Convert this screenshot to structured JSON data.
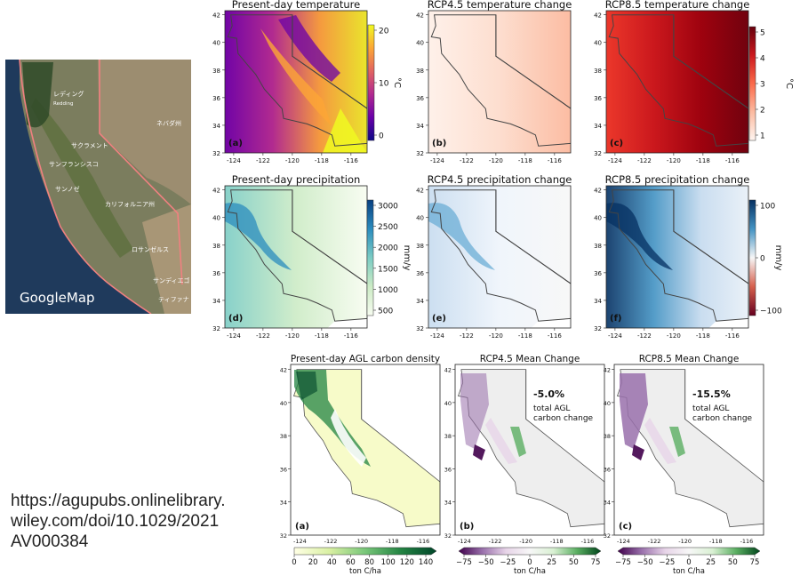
{
  "google_map": {
    "label": "GoogleMap",
    "place_labels": [
      "レディング",
      "Redding",
      "ネバダ州",
      "サクラメント",
      "サンフランシスコ",
      "サンノゼ",
      "カリフォルニア州",
      "ロサンゼルス",
      "サンディエゴ",
      "ティファナ"
    ]
  },
  "source_url_lines": [
    "https://agupubs.onlinelibrary.",
    "wiley.com/doi/10.1029/2021",
    "AV000384"
  ],
  "climate_panels": [
    {
      "id": "a",
      "title": "Present-day temperature",
      "tag": "(a)"
    },
    {
      "id": "b",
      "title": "RCP4.5 temperature change",
      "tag": "(b)"
    },
    {
      "id": "c",
      "title": "RCP8.5 temperature change",
      "tag": "(c)"
    },
    {
      "id": "d",
      "title": "Present-day precipitation",
      "tag": "(d)"
    },
    {
      "id": "e",
      "title": "RCP4.5 precipitation change",
      "tag": "(e)"
    },
    {
      "id": "f",
      "title": "RCP8.5 precipitation change",
      "tag": "(f)"
    }
  ],
  "climate_axes": {
    "lat_ticks": [
      "42",
      "40",
      "38",
      "36",
      "34",
      "32"
    ],
    "lon_ticks": [
      "-124",
      "-122",
      "-120",
      "-118",
      "-116"
    ]
  },
  "climate_colorbars": {
    "temp_present": {
      "ticks": [
        "20",
        "10",
        "0"
      ],
      "unit": "°C"
    },
    "temp_change": {
      "ticks": [
        "5",
        "4",
        "3",
        "2",
        "1"
      ],
      "unit": "°C"
    },
    "precip_present": {
      "ticks": [
        "3000",
        "2500",
        "2000",
        "1500",
        "1000",
        "500"
      ],
      "unit": "mm/y"
    },
    "precip_change": {
      "ticks": [
        "100",
        "0",
        "−100"
      ],
      "unit": "mm/y"
    }
  },
  "carbon_panels": [
    {
      "id": "a",
      "title": "Present-day AGL carbon density",
      "tag": "(a)",
      "note_value": "",
      "note_text": []
    },
    {
      "id": "b",
      "title": "RCP4.5 Mean Change",
      "tag": "(b)",
      "note_value": "-5.0%",
      "note_text": [
        "total AGL",
        "carbon change"
      ]
    },
    {
      "id": "c",
      "title": "RCP8.5 Mean Change",
      "tag": "(c)",
      "note_value": "-15.5%",
      "note_text": [
        "total AGL",
        "carbon change"
      ]
    }
  ],
  "carbon_axes": {
    "lat_ticks": [
      "42",
      "40",
      "38",
      "36",
      "34",
      "32"
    ],
    "lon_ticks": [
      "-124",
      "-122",
      "-120",
      "-118",
      "-116"
    ]
  },
  "carbon_colorbars": [
    {
      "ticks": [
        "0",
        "20",
        "40",
        "60",
        "80",
        "100",
        "120",
        "140"
      ],
      "unit": "ton C/ha"
    },
    {
      "ticks": [
        "−75",
        "−50",
        "−25",
        "0",
        "25",
        "50",
        "75"
      ],
      "unit": "ton C/ha"
    },
    {
      "ticks": [
        "−75",
        "−50",
        "−25",
        "0",
        "25",
        "50",
        "75"
      ],
      "unit": "ton C/ha"
    }
  ],
  "colors": {
    "plasma": [
      "#0d0887",
      "#6a00a8",
      "#b12a90",
      "#e16462",
      "#fca636",
      "#f0f921"
    ],
    "reds": [
      "#fff5f0",
      "#fcbba1",
      "#fb6a4a",
      "#cb181d",
      "#67000d"
    ],
    "gnbu": [
      "#f7fcf0",
      "#ccebc5",
      "#7bccc4",
      "#2b8cbe",
      "#084081"
    ],
    "rdbu": [
      "#67001f",
      "#d6604d",
      "#f7f7f7",
      "#4393c3",
      "#053061"
    ],
    "ylgn": [
      "#ffffe5",
      "#d9f0a3",
      "#78c679",
      "#238443",
      "#004529"
    ],
    "prgn": [
      "#40004b",
      "#9970ab",
      "#e7d4e8",
      "#f7f7f7",
      "#d9f0d3",
      "#5aae61",
      "#00441b"
    ]
  }
}
